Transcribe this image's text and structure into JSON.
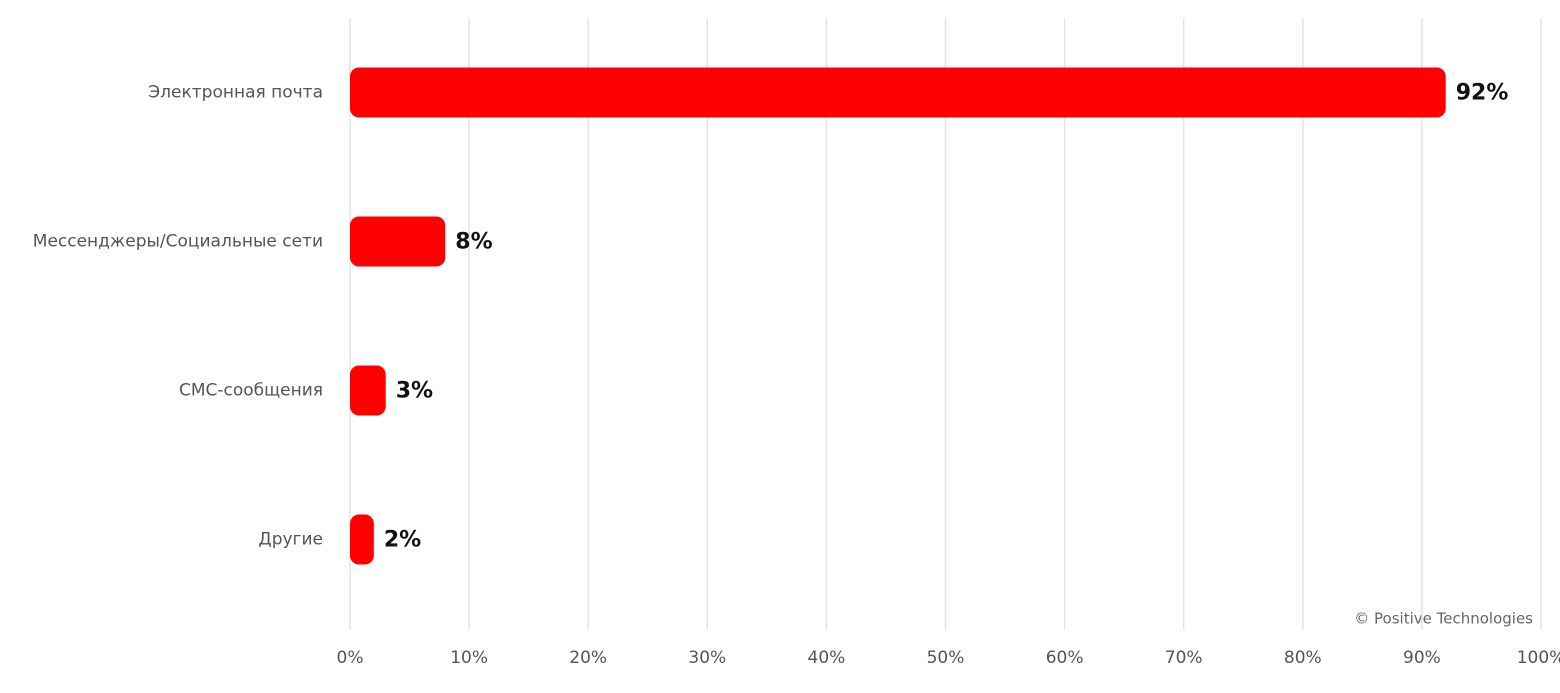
{
  "chart_data": {
    "type": "bar",
    "orientation": "horizontal",
    "categories": [
      "Электронная почта",
      "Мессенджеры/Социальные сети",
      "СМС-сообщения",
      "Другие"
    ],
    "values": [
      92,
      8,
      3,
      2
    ],
    "value_labels": [
      "92%",
      "8%",
      "3%",
      "2%"
    ],
    "color": "#ff0000",
    "xlim": [
      0,
      100
    ],
    "xticks": [
      {
        "value": 0,
        "label": "0%"
      },
      {
        "value": 10,
        "label": "10%"
      },
      {
        "value": 20,
        "label": "20%"
      },
      {
        "value": 30,
        "label": "30%"
      },
      {
        "value": 40,
        "label": "40%"
      },
      {
        "value": 50,
        "label": "50%"
      },
      {
        "value": 60,
        "label": "60%"
      },
      {
        "value": 70,
        "label": "70%"
      },
      {
        "value": 80,
        "label": "80%"
      },
      {
        "value": 90,
        "label": "90%"
      },
      {
        "value": 100,
        "label": "100%"
      }
    ],
    "grid": true,
    "credit": "© Positive Technologies"
  }
}
